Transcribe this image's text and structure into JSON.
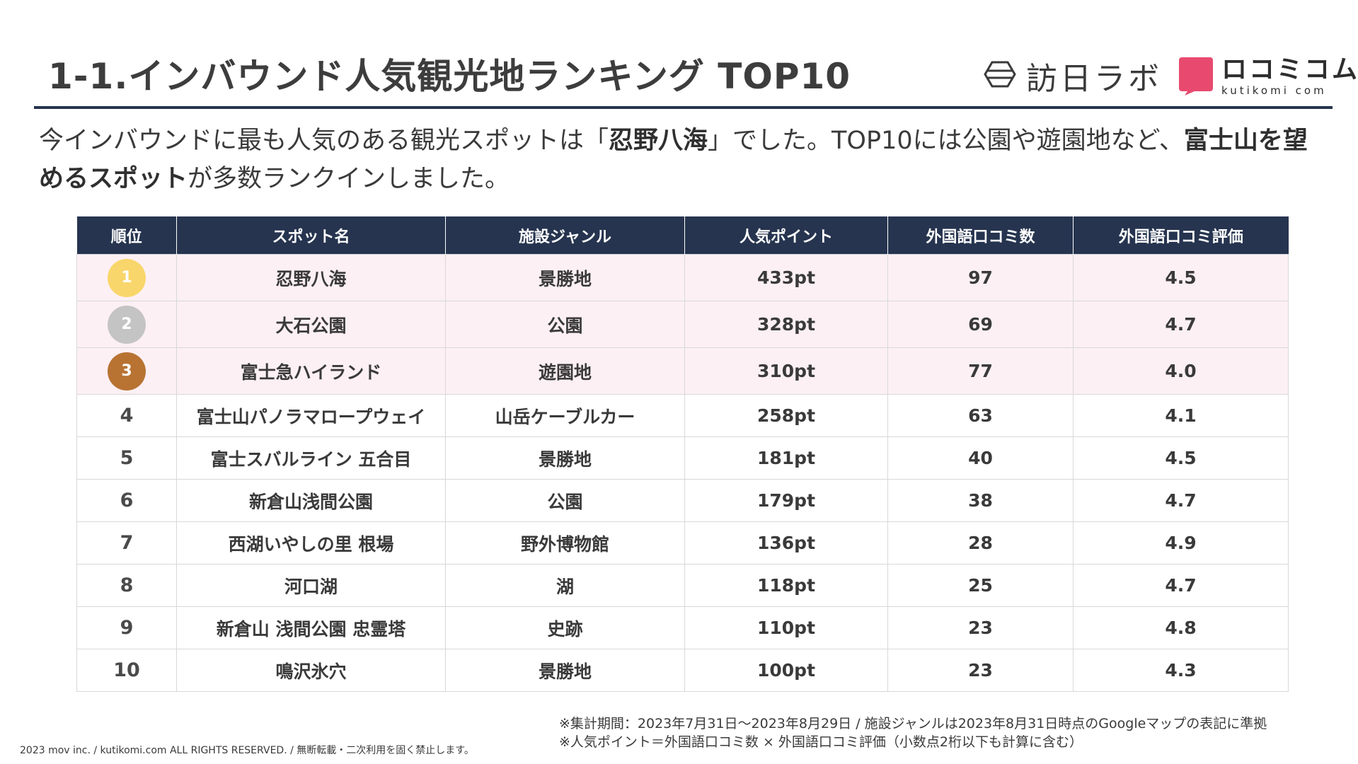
{
  "title": "1-1.インバウンド人気観光地ランキング TOP10",
  "logos": {
    "houjin_lab": "訪日ラボ",
    "kutikomi_jp": "ロコミコム",
    "kutikomi_en": "kutikomi com"
  },
  "intro": {
    "p1": "今インバウンドに最も人気のある観光スポットは「",
    "b1": "忍野八海",
    "p2": "」でした。TOP10には公園や遊園地など、",
    "b2": "富士山を望めるスポット",
    "p3": "が多数ランクインしました。"
  },
  "table": {
    "headers": [
      "順位",
      "スポット名",
      "施設ジャンル",
      "人気ポイント",
      "外国語口コミ数",
      "外国語口コミ評価"
    ],
    "rows": [
      {
        "rank": "1",
        "name": "忍野八海",
        "genre": "景勝地",
        "points": "433pt",
        "reviews": "97",
        "rating": "4.5"
      },
      {
        "rank": "2",
        "name": "大石公園",
        "genre": "公園",
        "points": "328pt",
        "reviews": "69",
        "rating": "4.7"
      },
      {
        "rank": "3",
        "name": "富士急ハイランド",
        "genre": "遊園地",
        "points": "310pt",
        "reviews": "77",
        "rating": "4.0"
      },
      {
        "rank": "4",
        "name": "富士山パノラマロープウェイ",
        "genre": "山岳ケーブルカー",
        "points": "258pt",
        "reviews": "63",
        "rating": "4.1"
      },
      {
        "rank": "5",
        "name": "富士スバルライン 五合目",
        "genre": "景勝地",
        "points": "181pt",
        "reviews": "40",
        "rating": "4.5"
      },
      {
        "rank": "6",
        "name": "新倉山浅間公園",
        "genre": "公園",
        "points": "179pt",
        "reviews": "38",
        "rating": "4.7"
      },
      {
        "rank": "7",
        "name": "西湖いやしの里 根場",
        "genre": "野外博物館",
        "points": "136pt",
        "reviews": "28",
        "rating": "4.9"
      },
      {
        "rank": "8",
        "name": "河口湖",
        "genre": "湖",
        "points": "118pt",
        "reviews": "25",
        "rating": "4.7"
      },
      {
        "rank": "9",
        "name": "新倉山 浅間公園 忠霊塔",
        "genre": "史跡",
        "points": "110pt",
        "reviews": "23",
        "rating": "4.8"
      },
      {
        "rank": "10",
        "name": "鳴沢氷穴",
        "genre": "景勝地",
        "points": "100pt",
        "reviews": "23",
        "rating": "4.3"
      }
    ],
    "medal_colors": [
      "#f9d66b",
      "#c4c4c4",
      "#b87333"
    ],
    "highlight_color": "#fdf0f4",
    "header_color": "#26344f"
  },
  "footnotes": [
    "※集計期間：2023年7月31日〜2023年8月29日 / 施設ジャンルは2023年8月31日時点のGoogleマップの表記に準拠",
    "※人気ポイント＝外国語口コミ数 × 外国語口コミ評価（小数点2桁以下も計算に含む）"
  ],
  "copyright": "2023 mov inc. / kutikomi.com ALL RIGHTS RESERVED. / 無断転載・二次利用を固く禁止します。",
  "icons": {
    "houjin_mark": "hexagon-outline-icon",
    "kutikomi_mark": "speech-bubble-icon"
  },
  "brand_colors": {
    "kutikomi": "#e84a6f",
    "navy": "#26344f"
  }
}
